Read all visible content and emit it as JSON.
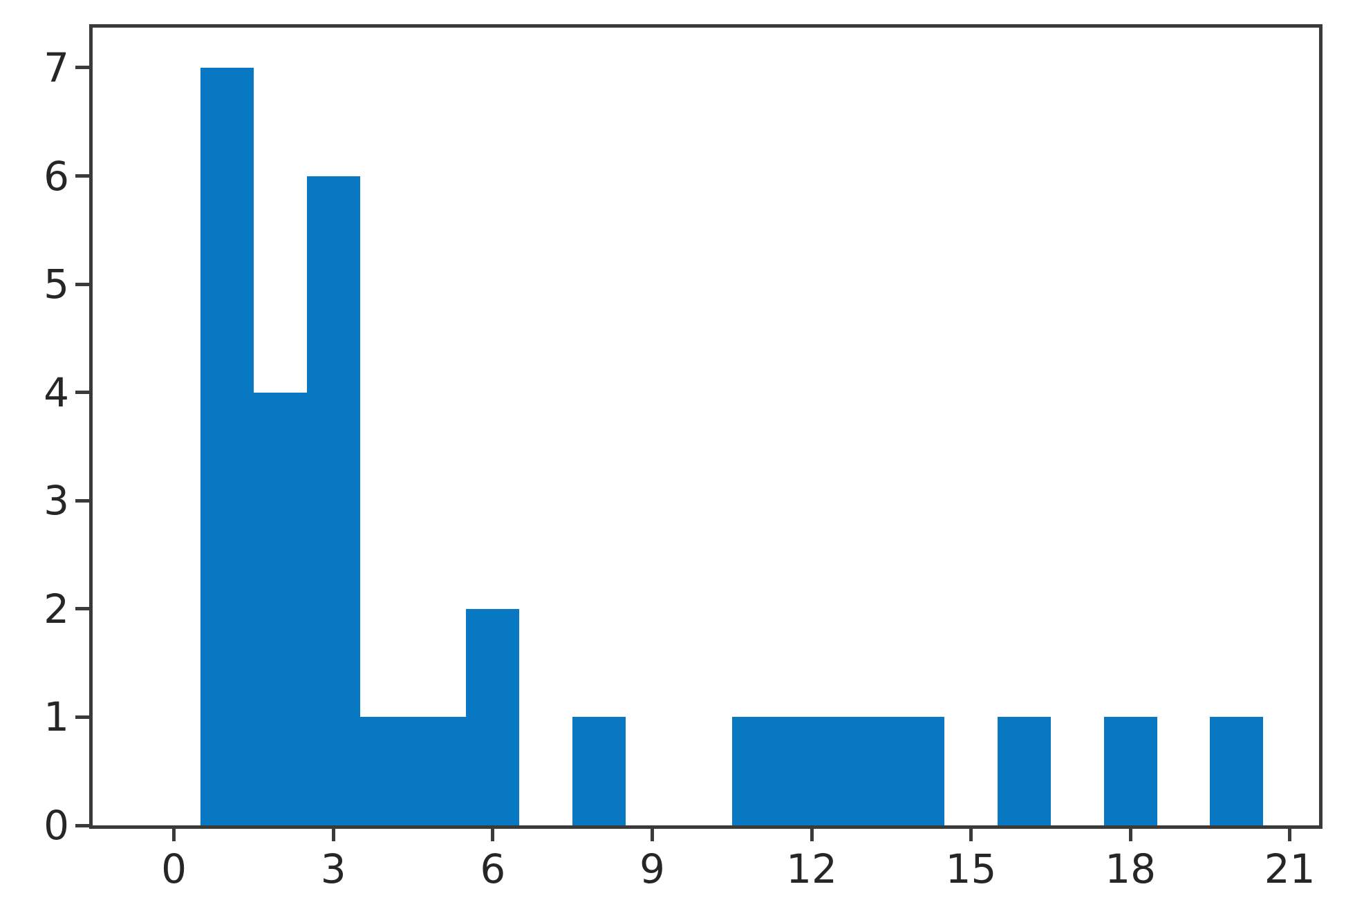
{
  "figure": {
    "background_color": "#ffffff",
    "frame_color": "#3a3a3a",
    "tick_label_color": "#262626"
  },
  "chart_data": {
    "type": "bar",
    "subtype": "histogram",
    "title": "",
    "xlabel": "",
    "ylabel": "",
    "grid": false,
    "legend": null,
    "bar_color": "#0878c2",
    "bin_edges": [
      0.5,
      1.5,
      2.5,
      3.5,
      4.5,
      5.5,
      6.5,
      7.5,
      8.5,
      9.5,
      10.5,
      11.5,
      12.5,
      13.5,
      14.5,
      15.5,
      16.5,
      17.5,
      18.5,
      19.5,
      20.5
    ],
    "counts": [
      7,
      4,
      6,
      1,
      1,
      2,
      0,
      1,
      0,
      0,
      1,
      1,
      1,
      1,
      0,
      1,
      0,
      1,
      0,
      1
    ],
    "x_tick_values": [
      0,
      3,
      6,
      9,
      12,
      15,
      18,
      21
    ],
    "x_tick_labels": [
      "0",
      "3",
      "6",
      "9",
      "12",
      "15",
      "18",
      "21"
    ],
    "y_tick_values": [
      0,
      1,
      2,
      3,
      4,
      5,
      6,
      7
    ],
    "y_tick_labels": [
      "0",
      "1",
      "2",
      "3",
      "4",
      "5",
      "6",
      "7"
    ],
    "xlim": [
      -1.53,
      21.55
    ],
    "ylim": [
      0,
      7.37
    ]
  }
}
